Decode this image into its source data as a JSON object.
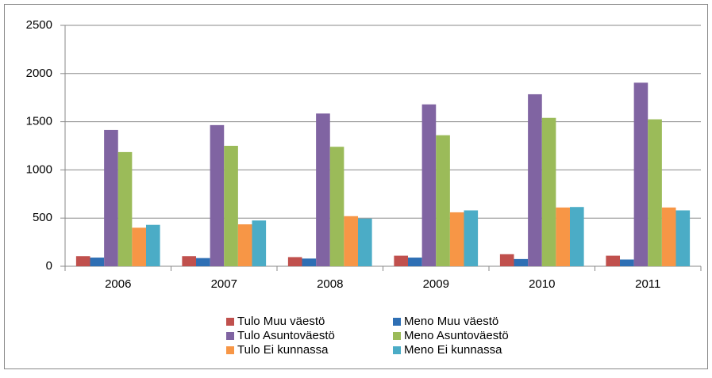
{
  "chart_data": {
    "type": "bar",
    "categories": [
      "2006",
      "2007",
      "2008",
      "2009",
      "2010",
      "2011"
    ],
    "series": [
      {
        "name": "Tulo Muu väestö",
        "color": "#c0504d",
        "values": [
          105,
          105,
          95,
          110,
          125,
          110
        ]
      },
      {
        "name": "Meno Muu väestö",
        "color": "#2e6fb4",
        "values": [
          90,
          85,
          80,
          90,
          75,
          70
        ]
      },
      {
        "name": "Tulo Asuntoväestö",
        "color": "#8064a2",
        "values": [
          1415,
          1465,
          1585,
          1680,
          1785,
          1905
        ]
      },
      {
        "name": "Meno Asuntoväestö",
        "color": "#9bbb59",
        "values": [
          1185,
          1250,
          1240,
          1360,
          1540,
          1525
        ]
      },
      {
        "name": "Tulo Ei kunnassa",
        "color": "#f79646",
        "values": [
          400,
          435,
          520,
          560,
          610,
          610
        ]
      },
      {
        "name": "Meno Ei kunnassa",
        "color": "#4bacc6",
        "values": [
          430,
          475,
          495,
          580,
          615,
          580
        ]
      }
    ],
    "ylim": [
      0,
      2500
    ],
    "yticks": [
      0,
      500,
      1000,
      1500,
      2000,
      2500
    ],
    "grid": true,
    "legend": "bottom"
  }
}
